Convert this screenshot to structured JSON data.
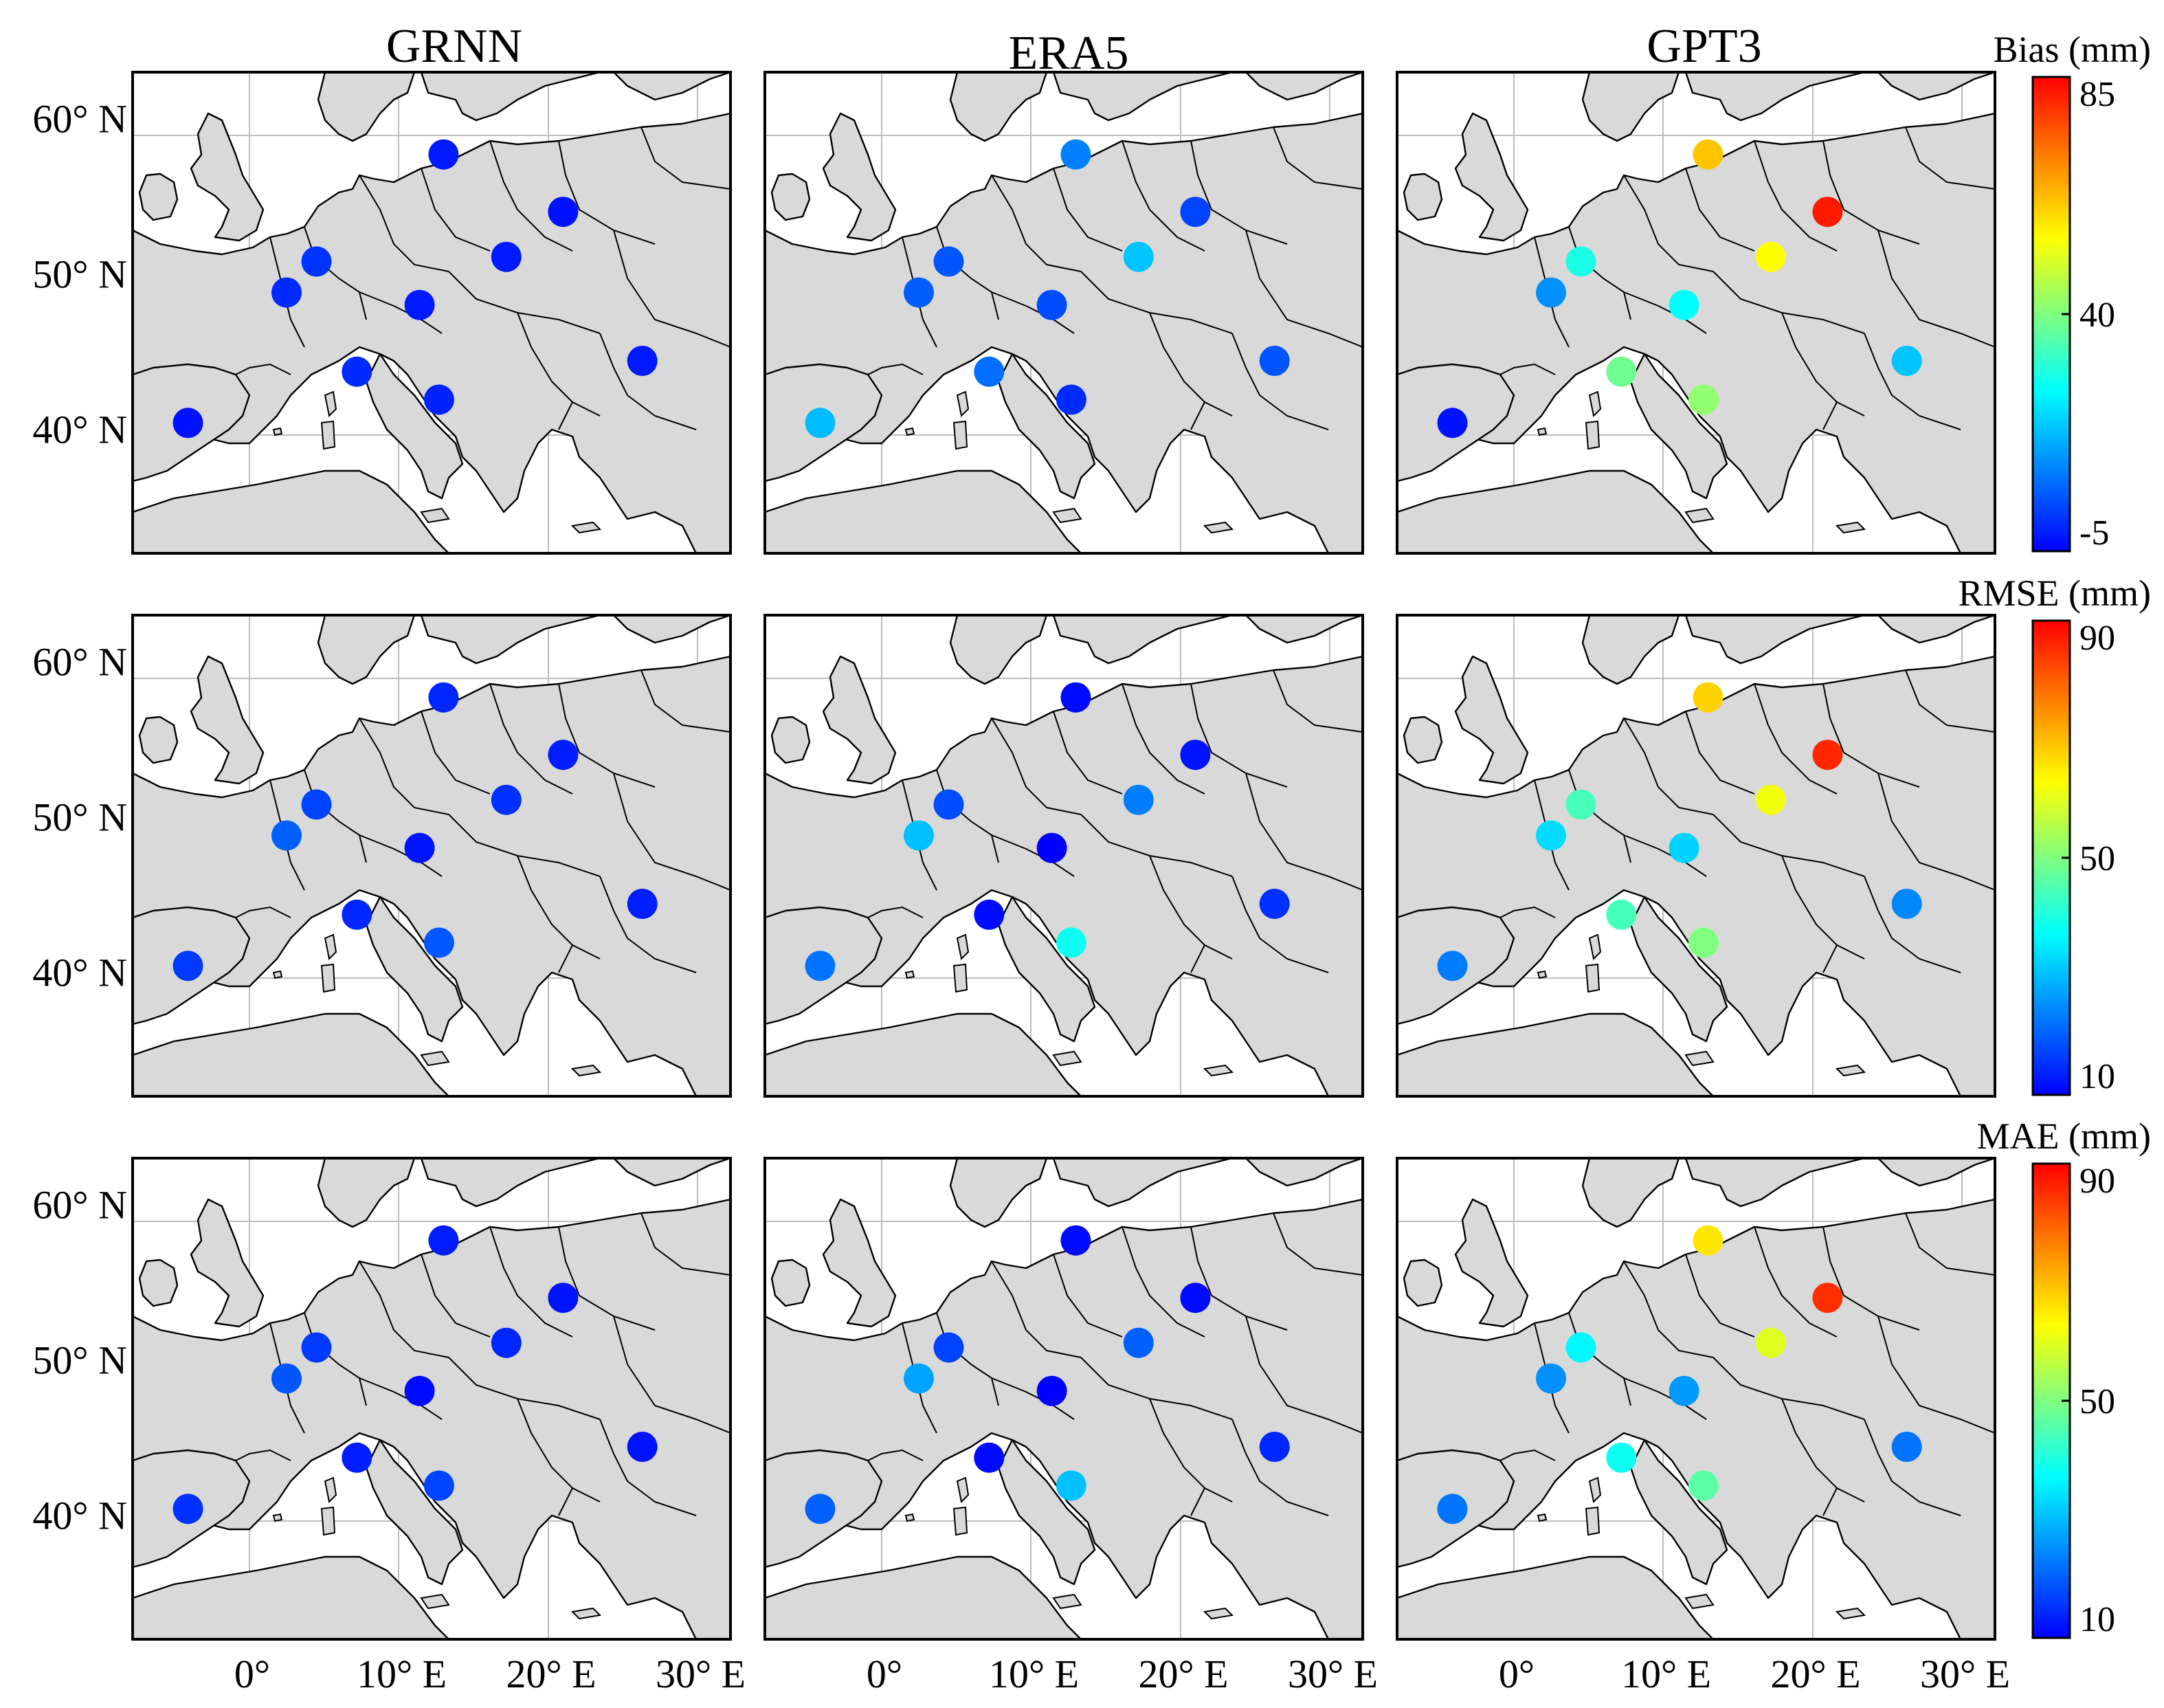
{
  "column_titles": [
    "GRNN",
    "ERA5",
    "GPT3"
  ],
  "lat_labels": [
    "60° N",
    "50° N",
    "40° N"
  ],
  "lon_labels": [
    "0°",
    "10° E",
    "20° E",
    "30° E"
  ],
  "colorbars": [
    {
      "title": "Bias (mm)",
      "min": -5,
      "max": 85,
      "ticks": [
        {
          "value": 85,
          "label": "85"
        },
        {
          "value": 40,
          "label": "40"
        },
        {
          "value": -5,
          "label": "-5"
        }
      ]
    },
    {
      "title": "RMSE (mm)",
      "min": 10,
      "max": 90,
      "ticks": [
        {
          "value": 90,
          "label": "90"
        },
        {
          "value": 50,
          "label": "50"
        },
        {
          "value": 10,
          "label": "10"
        }
      ]
    },
    {
      "title": "MAE (mm)",
      "min": 10,
      "max": 90,
      "ticks": [
        {
          "value": 90,
          "label": "90"
        },
        {
          "value": 50,
          "label": "50"
        },
        {
          "value": 10,
          "label": "10"
        }
      ]
    }
  ],
  "colormap": [
    "#0000ff",
    "#0080ff",
    "#00ffff",
    "#80ff80",
    "#ffff00",
    "#ff8000",
    "#ff0000"
  ],
  "map_extent": {
    "lon": [
      -8,
      32
    ],
    "lat": [
      32,
      63
    ]
  },
  "stations": [
    {
      "lon": 12.8,
      "lat": 57.7
    },
    {
      "lon": 20.8,
      "lat": 54.0
    },
    {
      "lon": 17.0,
      "lat": 51.1
    },
    {
      "lon": 4.3,
      "lat": 50.8
    },
    {
      "lon": 2.3,
      "lat": 48.8
    },
    {
      "lon": 11.2,
      "lat": 48.0
    },
    {
      "lon": 7.0,
      "lat": 43.7
    },
    {
      "lon": 12.5,
      "lat": 41.9
    },
    {
      "lon": 26.1,
      "lat": 44.4
    },
    {
      "lon": -4.3,
      "lat": 40.4
    }
  ],
  "chart_data": [
    {
      "type": "scatter",
      "title": "GRNN",
      "metric": "Bias (mm)",
      "values": [
        -2,
        -3,
        -2,
        1,
        0,
        -2,
        0,
        -1,
        -2,
        -3
      ]
    },
    {
      "type": "scatter",
      "title": "ERA5",
      "metric": "Bias (mm)",
      "values": [
        10,
        3,
        18,
        5,
        6,
        4,
        8,
        0,
        5,
        17
      ]
    },
    {
      "type": "scatter",
      "title": "GPT3",
      "metric": "Bias (mm)",
      "values": [
        62,
        82,
        55,
        28,
        12,
        25,
        38,
        42,
        18,
        -3
      ]
    },
    {
      "type": "scatter",
      "title": "GRNN",
      "metric": "RMSE (mm)",
      "values": [
        14,
        13,
        15,
        17,
        20,
        12,
        14,
        19,
        13,
        16
      ]
    },
    {
      "type": "scatter",
      "title": "ERA5",
      "metric": "RMSE (mm)",
      "values": [
        11,
        12,
        23,
        18,
        30,
        10,
        11,
        38,
        15,
        22
      ]
    },
    {
      "type": "scatter",
      "title": "GPT3",
      "metric": "RMSE (mm)",
      "values": [
        68,
        86,
        62,
        44,
        33,
        32,
        44,
        50,
        24,
        23
      ]
    },
    {
      "type": "scatter",
      "title": "GRNN",
      "metric": "MAE (mm)",
      "values": [
        13,
        12,
        14,
        16,
        19,
        11,
        13,
        17,
        12,
        15
      ]
    },
    {
      "type": "scatter",
      "title": "ERA5",
      "metric": "MAE (mm)",
      "values": [
        11,
        11,
        20,
        17,
        27,
        10,
        11,
        30,
        14,
        20
      ]
    },
    {
      "type": "scatter",
      "title": "GPT3",
      "metric": "MAE (mm)",
      "values": [
        66,
        85,
        60,
        36,
        25,
        26,
        38,
        46,
        22,
        22
      ]
    }
  ]
}
